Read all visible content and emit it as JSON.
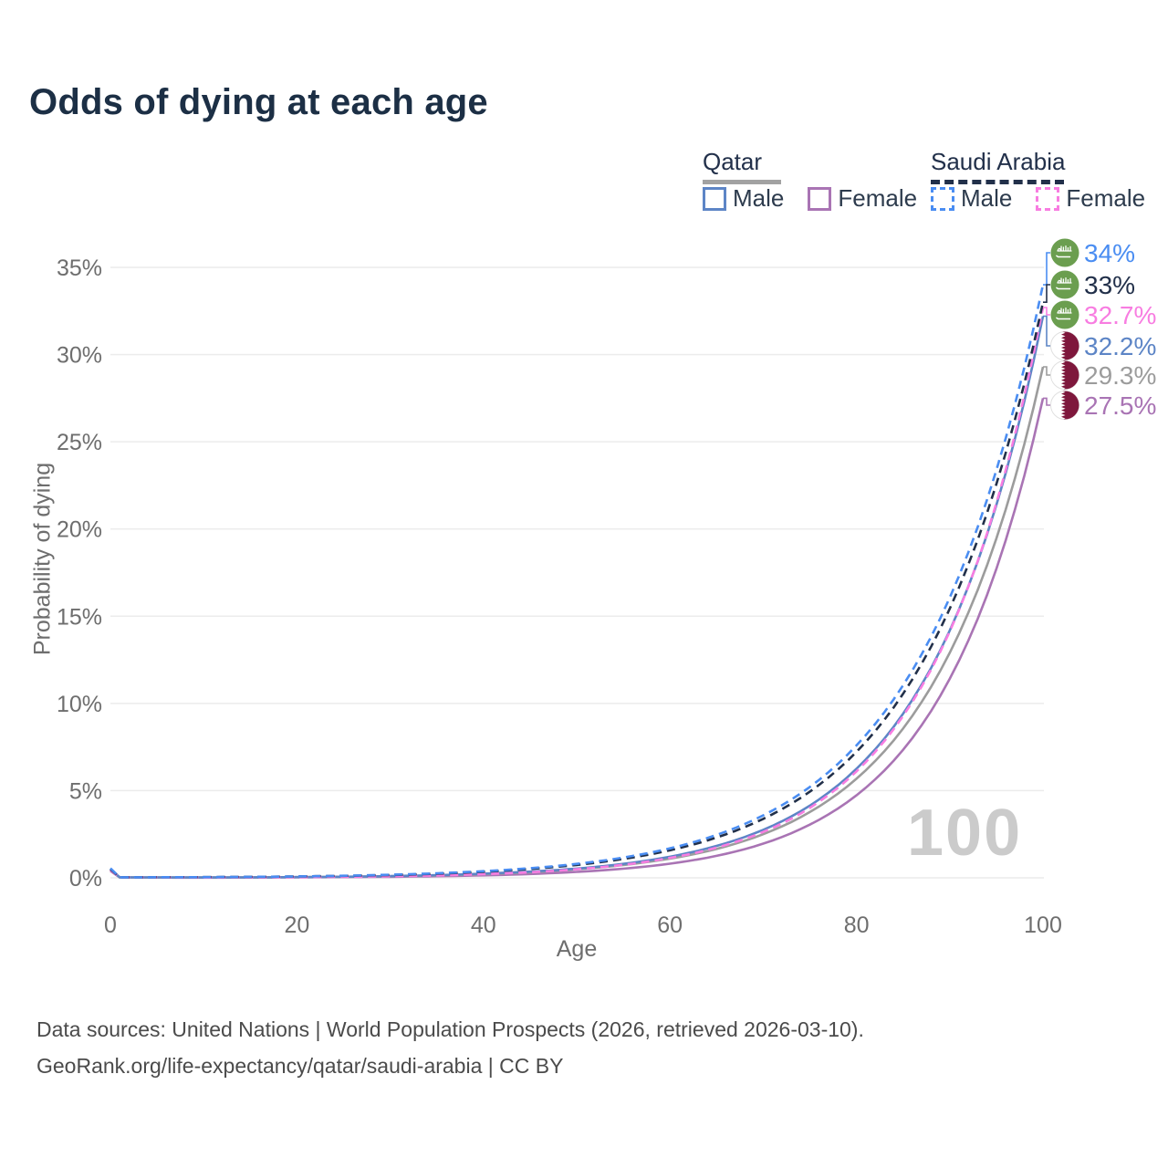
{
  "title": "Odds of dying at each age",
  "legend": {
    "groups": [
      {
        "name": "Qatar",
        "line_style": "solid",
        "underline_color": "#a2a2a2",
        "items": [
          {
            "label": "Male",
            "color": "#5d85c6"
          },
          {
            "label": "Female",
            "color": "#a974b4"
          }
        ]
      },
      {
        "name": "Saudi Arabia",
        "line_style": "dashed",
        "underline_color": "#22304a",
        "items": [
          {
            "label": "Male",
            "color": "#4a8df2"
          },
          {
            "label": "Female",
            "color": "#f87de1"
          }
        ]
      }
    ]
  },
  "chart_data": {
    "type": "line",
    "title": "Odds of dying at each age",
    "xlabel": "Age",
    "ylabel": "Probability of dying",
    "xlim": [
      0,
      100
    ],
    "ylim": [
      0,
      35
    ],
    "x_ticks": [
      0,
      20,
      40,
      60,
      80,
      100
    ],
    "y_ticks": [
      "0%",
      "5%",
      "10%",
      "15%",
      "20%",
      "25%",
      "30%",
      "35%"
    ],
    "grid": "horizontal",
    "legend_position": "top-right",
    "watermark": "100",
    "x": [
      0,
      1,
      10,
      20,
      30,
      40,
      50,
      60,
      65,
      70,
      75,
      80,
      85,
      90,
      95,
      100
    ],
    "series": [
      {
        "id": "saudi-arabia-male",
        "name": "Saudi Arabia Male",
        "dash": "dashed",
        "color": "#4a8df2",
        "flag": "saudi-arabia",
        "end_label": "34%",
        "values": [
          0.55,
          0.03,
          0.04,
          0.08,
          0.18,
          0.38,
          0.8,
          1.69,
          2.46,
          3.58,
          5.21,
          7.59,
          11.04,
          16.06,
          23.37,
          34.0
        ]
      },
      {
        "id": "saudi-arabia-both-sexes",
        "name": "Saudi Arabia Both sexes",
        "dash": "dashed",
        "color": "#22304a",
        "flag": "saudi-arabia",
        "end_label": "33%",
        "values": [
          0.5,
          0.03,
          0.04,
          0.08,
          0.16,
          0.35,
          0.74,
          1.58,
          2.31,
          3.38,
          4.94,
          7.22,
          10.55,
          15.43,
          22.57,
          33.0
        ]
      },
      {
        "id": "saudi-arabia-female",
        "name": "Saudi Arabia Female",
        "dash": "dashed",
        "color": "#f87de1",
        "flag": "saudi-arabia",
        "end_label": "32.7%",
        "values": [
          0.45,
          0.03,
          0.02,
          0.04,
          0.09,
          0.21,
          0.49,
          1.14,
          1.73,
          2.63,
          4.01,
          6.1,
          9.28,
          14.12,
          21.48,
          32.7
        ]
      },
      {
        "id": "qatar-male",
        "name": "Qatar Male",
        "dash": "solid",
        "color": "#5d85c6",
        "flag": "qatar",
        "end_label": "32.2%",
        "values": [
          0.5,
          0.03,
          0.02,
          0.04,
          0.1,
          0.24,
          0.53,
          1.21,
          1.83,
          2.75,
          4.14,
          6.25,
          9.41,
          14.18,
          21.37,
          32.2
        ]
      },
      {
        "id": "qatar-both-sexes",
        "name": "Qatar Both sexes",
        "dash": "solid",
        "color": "#9c9c9c",
        "flag": "qatar",
        "end_label": "29.3%",
        "values": [
          0.45,
          0.03,
          0.02,
          0.04,
          0.09,
          0.21,
          0.49,
          1.1,
          1.66,
          2.5,
          3.77,
          5.68,
          8.56,
          12.9,
          19.45,
          29.3
        ]
      },
      {
        "id": "qatar-female",
        "name": "Qatar Female",
        "dash": "solid",
        "color": "#a974b4",
        "flag": "qatar",
        "end_label": "27.5%",
        "values": [
          0.4,
          0.02,
          0.01,
          0.03,
          0.06,
          0.14,
          0.34,
          0.81,
          1.26,
          1.96,
          3.05,
          4.73,
          7.34,
          11.41,
          17.71,
          27.5
        ]
      }
    ]
  },
  "colors": {
    "title": "#1c2f45",
    "axis_text": "#6e6e6e",
    "grid": "#ececec",
    "watermark": "#cbcbcb",
    "saudi_flag_green": "#6b9e4f",
    "qatar_flag_maroon": "#7e173c"
  },
  "footer": {
    "line1": "Data sources: United Nations | World Population Prospects (2026, retrieved 2026-03-10).",
    "line2": "GeoRank.org/life-expectancy/qatar/saudi-arabia | CC BY"
  }
}
